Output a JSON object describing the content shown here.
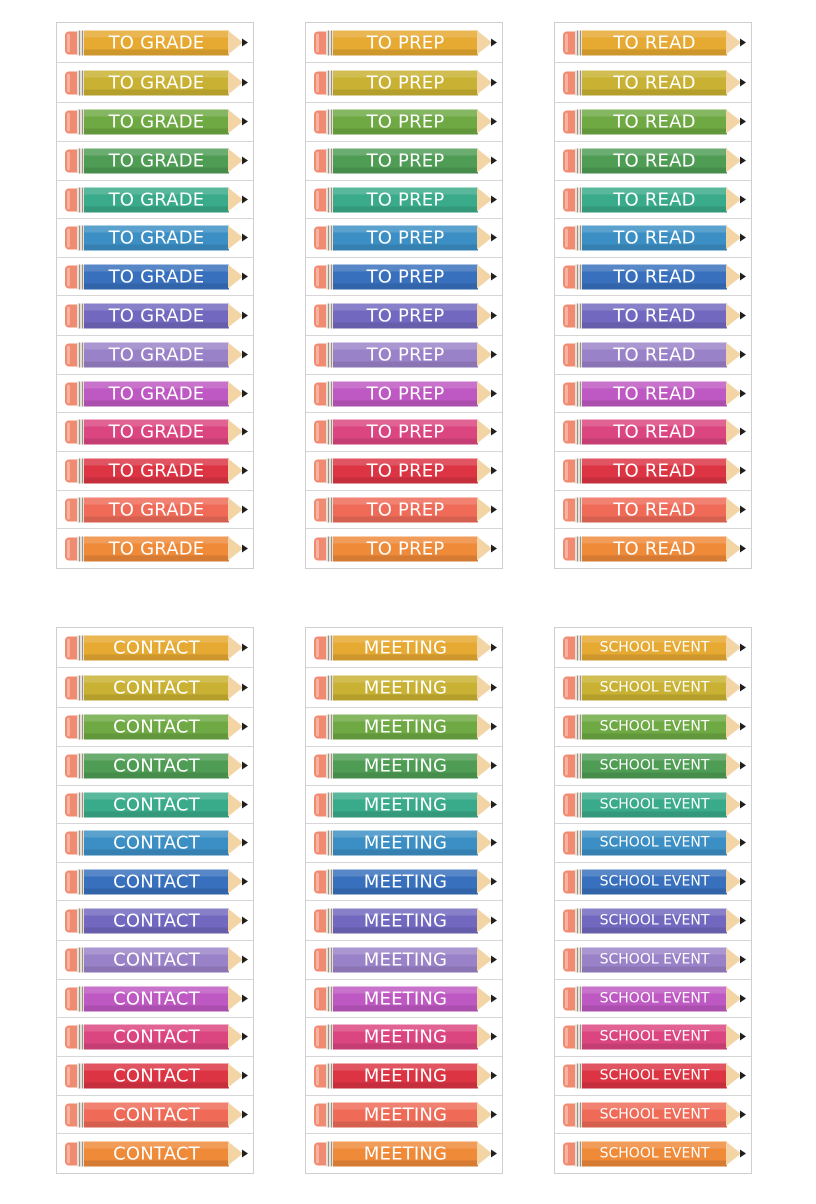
{
  "colors": [
    "#e6a932",
    "#c9b233",
    "#6ea943",
    "#4f9d55",
    "#3aab8a",
    "#3b8fc4",
    "#3870bd",
    "#7268bf",
    "#9a82c8",
    "#be58c2",
    "#dc4680",
    "#dc3443",
    "#ef6b58",
    "#ef8a39"
  ],
  "sheets": [
    {
      "label": "TO GRADE"
    },
    {
      "label": "TO PREP"
    },
    {
      "label": "TO READ"
    },
    {
      "label": "CONTACT"
    },
    {
      "label": "MEETING"
    },
    {
      "label": "SCHOOL EVENT"
    }
  ]
}
